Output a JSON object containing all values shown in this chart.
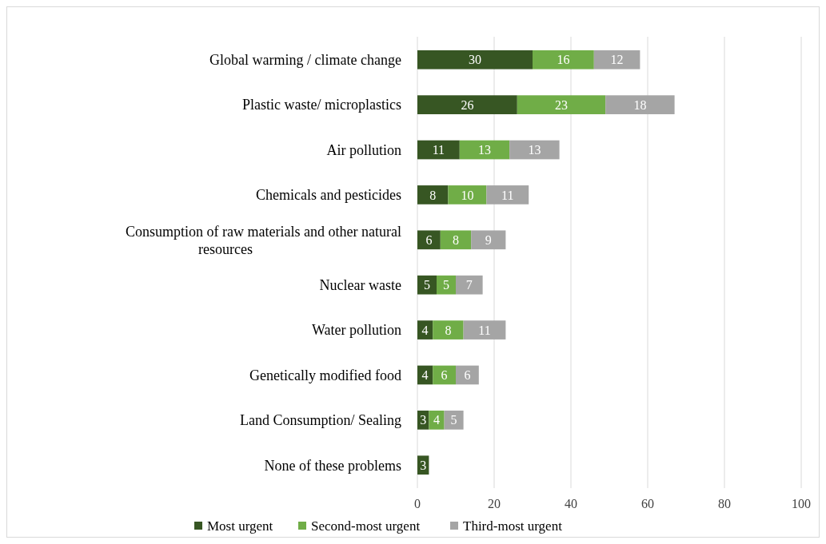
{
  "chart_data": {
    "type": "bar",
    "orientation": "horizontal",
    "stacked": true,
    "categories": [
      "Global warming / climate change",
      "Plastic waste/ microplastics",
      "Air pollution",
      "Chemicals and pesticides",
      "Consumption of raw materials and other natural resources",
      "Nuclear waste",
      "Water pollution",
      "Genetically modified food",
      "Land Consumption/ Sealing",
      "None of these problems"
    ],
    "series": [
      {
        "name": "Most urgent",
        "color": "#375623",
        "values": [
          30,
          26,
          11,
          8,
          6,
          5,
          4,
          4,
          3,
          3
        ]
      },
      {
        "name": "Second-most urgent",
        "color": "#70ad47",
        "values": [
          16,
          23,
          13,
          10,
          8,
          5,
          8,
          6,
          4,
          null
        ]
      },
      {
        "name": "Third-most urgent",
        "color": "#a5a5a5",
        "values": [
          12,
          18,
          13,
          11,
          9,
          7,
          11,
          6,
          5,
          null
        ]
      }
    ],
    "xlim": [
      0,
      100
    ],
    "xticks": [
      0,
      20,
      40,
      60,
      80,
      100
    ],
    "grid": "x",
    "legend": "bottom",
    "data_labels": true
  }
}
